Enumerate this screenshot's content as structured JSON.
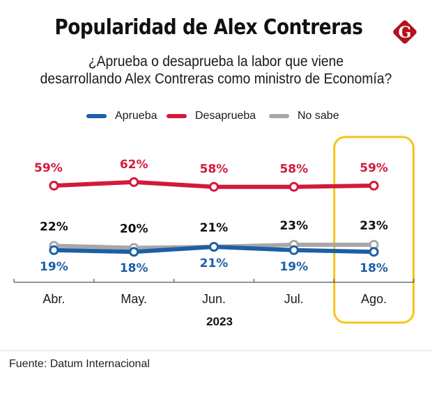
{
  "header": {
    "title": "Popularidad de Alex Contreras",
    "logo_letter": "G",
    "logo_color": "#b5121b",
    "subtitle_line1": "¿Aprueba o desaprueba la labor que viene",
    "subtitle_line2": "desarrollando Alex Contreras como ministro de Economía?"
  },
  "colors": {
    "aprueba": "#1b5fa6",
    "desaprueba": "#d3193a",
    "no_sabe": "#a7a7a7",
    "highlight": "#f5c518",
    "axis": "#555555"
  },
  "chart_data": {
    "type": "line",
    "title": "Popularidad de Alex Contreras",
    "subtitle": "¿Aprueba o desaprueba la labor que viene desarrollando Alex Contreras como ministro de Economía?",
    "categories": [
      "Abr.",
      "May.",
      "Jun.",
      "Jul.",
      "Ago."
    ],
    "xlabel": "2023",
    "ylabel": "",
    "ylim": [
      0,
      70
    ],
    "grid": false,
    "legend_position": "top-center",
    "highlighted_category": "Ago.",
    "series": [
      {
        "name": "Aprueba",
        "key": "aprueba",
        "values": [
          19,
          18,
          21,
          19,
          18
        ],
        "labels": [
          "19%",
          "18%",
          "21%",
          "19%",
          "18%"
        ],
        "label_position": "below"
      },
      {
        "name": "Desaprueba",
        "key": "desaprueba",
        "values": [
          59,
          62,
          58,
          58,
          59
        ],
        "labels": [
          "59%",
          "62%",
          "58%",
          "58%",
          "59%"
        ],
        "label_position": "above"
      },
      {
        "name": "No sabe",
        "key": "no_sabe",
        "values": [
          22,
          20,
          21,
          23,
          23
        ],
        "labels": [
          "22%",
          "20%",
          "21%",
          "23%",
          "23%"
        ],
        "label_position": "above"
      }
    ]
  },
  "legend": [
    {
      "label": "Aprueba",
      "key": "aprueba"
    },
    {
      "label": "Desaprueba",
      "key": "desaprueba"
    },
    {
      "label": "No sabe",
      "key": "no_sabe"
    }
  ],
  "footer": {
    "source": "Fuente: Datum Internacional"
  }
}
